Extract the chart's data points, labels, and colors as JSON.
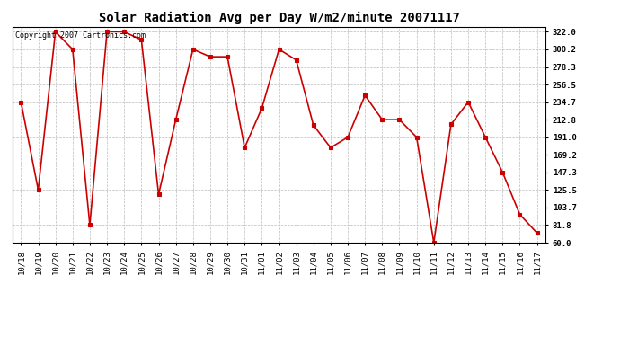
{
  "title": "Solar Radiation Avg per Day W/m2/minute 20071117",
  "copyright_text": "Copyright 2007 Cartronics.com",
  "dates": [
    "10/18",
    "10/19",
    "10/20",
    "10/21",
    "10/22",
    "10/23",
    "10/24",
    "10/25",
    "10/26",
    "10/27",
    "10/28",
    "10/29",
    "10/30",
    "10/31",
    "11/01",
    "11/02",
    "11/03",
    "11/04",
    "11/05",
    "11/06",
    "11/07",
    "11/08",
    "11/09",
    "11/10",
    "11/11",
    "11/12",
    "11/13",
    "11/14",
    "11/15",
    "11/16",
    "11/17"
  ],
  "values": [
    234.7,
    125.5,
    322.0,
    300.2,
    81.8,
    322.0,
    322.0,
    312.0,
    120.0,
    212.8,
    300.2,
    291.0,
    291.0,
    178.0,
    227.0,
    300.2,
    287.0,
    206.0,
    178.0,
    191.0,
    243.0,
    212.8,
    212.8,
    191.0,
    60.0,
    207.0,
    234.7,
    191.0,
    147.3,
    95.0,
    72.0
  ],
  "line_color": "#cc0000",
  "marker_color": "#cc0000",
  "bg_color": "#ffffff",
  "grid_color": "#bbbbbb",
  "ylim_min": 60.0,
  "ylim_max": 328.0,
  "ytick_values": [
    322.0,
    300.2,
    278.3,
    256.5,
    234.7,
    212.8,
    191.0,
    169.2,
    147.3,
    125.5,
    103.7,
    81.8,
    60.0
  ],
  "ytick_labels": [
    "322.0",
    "300.2",
    "278.3",
    "256.5",
    "234.7",
    "212.8",
    "191.0",
    "169.2",
    "147.3",
    "125.5",
    "103.7",
    "81.8",
    "60.0"
  ],
  "title_fontsize": 10,
  "copyright_fontsize": 6,
  "tick_fontsize": 6.5,
  "figwidth": 6.9,
  "figheight": 3.75,
  "dpi": 100
}
